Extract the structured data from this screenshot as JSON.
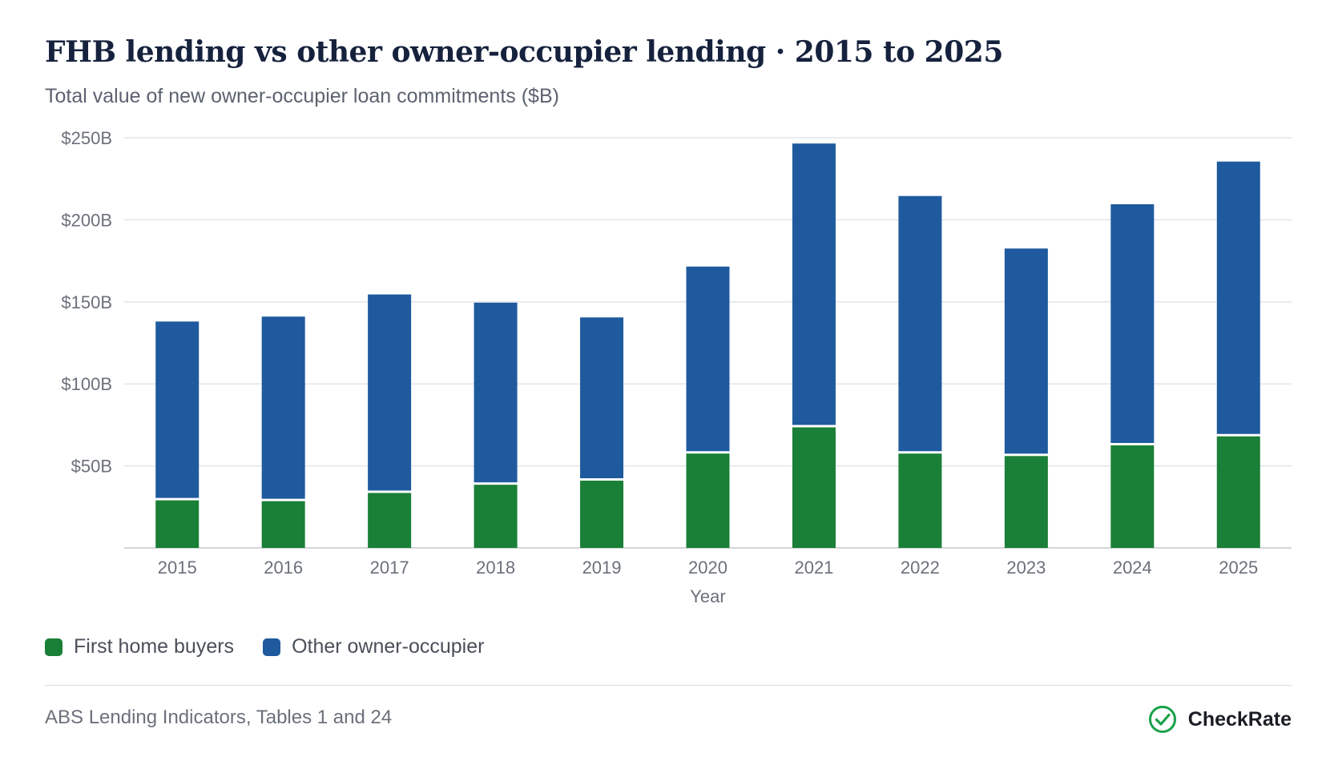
{
  "header": {
    "title": "FHB lending vs other owner-occupier lending · 2015 to 2025",
    "subtitle": "Total value of new owner-occupier loan commitments ($B)"
  },
  "colors": {
    "first_home_buyers": "#1a7f37",
    "other_owner_occupier": "#1f5a9e",
    "grid": "#e3e5e9",
    "axis": "#c4c7cd",
    "brand_check": "#1aa14a"
  },
  "chart_data": {
    "type": "bar",
    "stacked": true,
    "categories": [
      "2015",
      "2016",
      "2017",
      "2018",
      "2019",
      "2020",
      "2021",
      "2022",
      "2023",
      "2024",
      "2025"
    ],
    "series": [
      {
        "name": "First home buyers",
        "values": [
          29,
          28.5,
          33.5,
          38.5,
          41,
          57.5,
          73.5,
          57.5,
          56,
          62.5,
          68
        ]
      },
      {
        "name": "Other owner-occupier",
        "values": [
          109,
          112.5,
          121,
          111,
          99.5,
          114,
          173,
          157,
          126.5,
          147,
          167.5
        ]
      }
    ],
    "xlabel": "Year",
    "ylabel": "",
    "ylim": [
      0,
      250
    ],
    "yticks": [
      50,
      100,
      150,
      200,
      250
    ],
    "ytick_labels": [
      "$50B",
      "$100B",
      "$150B",
      "$200B",
      "$250B"
    ],
    "grid": true,
    "legend_position": "bottom-left"
  },
  "legend": {
    "items": [
      {
        "label": "First home buyers",
        "color": "#1a7f37"
      },
      {
        "label": "Other owner-occupier",
        "color": "#1f5a9e"
      }
    ]
  },
  "footer": {
    "source": "ABS Lending Indicators, Tables 1 and 24",
    "brand": "CheckRate",
    "brand_icon": "check-circle-icon"
  }
}
